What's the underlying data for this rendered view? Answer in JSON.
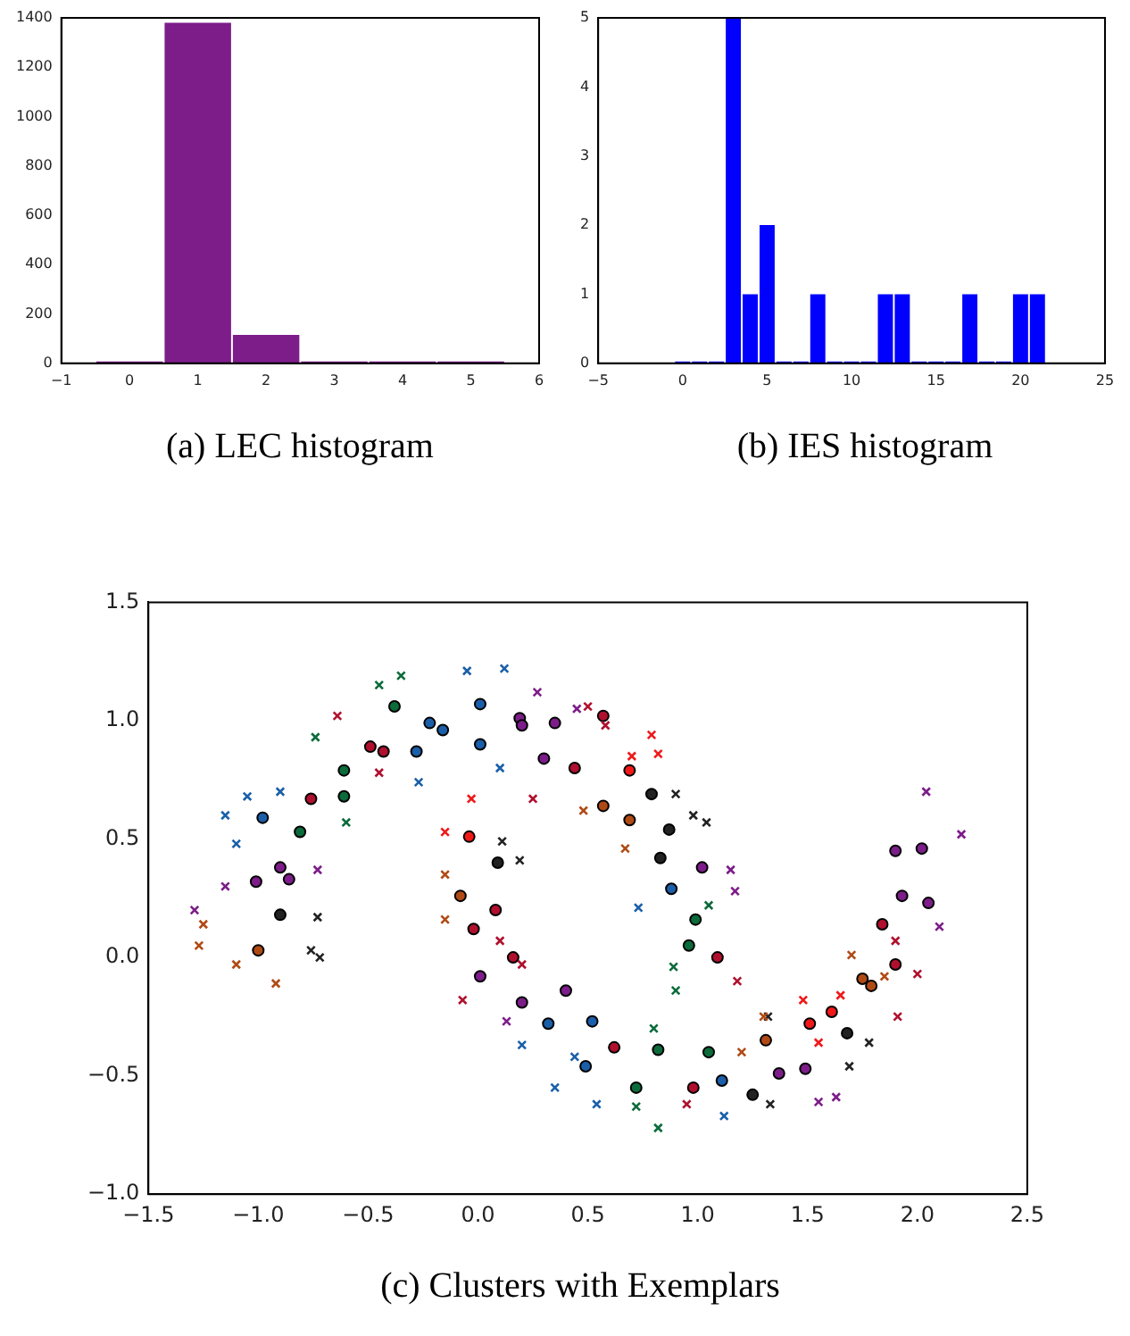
{
  "chart_data": [
    {
      "type": "histogram",
      "title": "(a) LEC histogram",
      "bins": [
        -0.5,
        0.5,
        1.5,
        2.5,
        3.5,
        4.5,
        5.5
      ],
      "values": [
        0,
        1380,
        115,
        0,
        0,
        0
      ],
      "color": "#7d1d8a",
      "xlim": [
        -1,
        6
      ],
      "xticks": [
        {
          "value": -1,
          "label": "−1"
        },
        0,
        1,
        2,
        3,
        4,
        5,
        6
      ],
      "ylim": [
        0,
        1400
      ],
      "yticks": [
        0,
        200,
        400,
        600,
        800,
        1000,
        1200,
        1400
      ],
      "grid": false,
      "legend": false
    },
    {
      "type": "histogram",
      "title": "(b) IES histogram",
      "bins": [
        -0.5,
        0.5,
        1.5,
        2.5,
        3.5,
        4.5,
        5.5,
        6.5,
        7.5,
        8.5,
        9.5,
        10.5,
        11.5,
        12.5,
        13.5,
        14.5,
        15.5,
        16.5,
        17.5,
        18.5,
        19.5,
        20.5,
        21.5
      ],
      "values": [
        0,
        0,
        0,
        5,
        1,
        2,
        0,
        0,
        1,
        0,
        0,
        0,
        1,
        1,
        0,
        0,
        0,
        1,
        0,
        0,
        1,
        1
      ],
      "color": "#0000ff",
      "xlim": [
        -5,
        25
      ],
      "xticks": [
        {
          "value": -5,
          "label": "−5"
        },
        0,
        5,
        10,
        15,
        20,
        25
      ],
      "ylim": [
        0,
        5
      ],
      "yticks": [
        0,
        1,
        2,
        3,
        4,
        5
      ],
      "grid": false,
      "legend": false
    },
    {
      "type": "scatter",
      "title": "(c) Clusters with Exemplars",
      "marker": "cross",
      "grid": false,
      "legend": false,
      "xlim": [
        -1.5,
        2.5
      ],
      "xticks": [
        {
          "value": -1.5,
          "label": "−1.5"
        },
        {
          "value": -1,
          "label": "−1.0"
        },
        {
          "value": -0.5,
          "label": "−0.5"
        },
        {
          "value": 0,
          "label": "0.0"
        },
        {
          "value": 0.5,
          "label": "0.5"
        },
        {
          "value": 1,
          "label": "1.0"
        },
        {
          "value": 1.5,
          "label": "1.5"
        },
        {
          "value": 2,
          "label": "2.0"
        },
        {
          "value": 2.5,
          "label": "2.5"
        }
      ],
      "ylim": [
        -1,
        1.5
      ],
      "yticks": [
        {
          "value": -1,
          "label": "−1.0"
        },
        {
          "value": -0.5,
          "label": "−0.5"
        },
        {
          "value": 0,
          "label": "0.0"
        },
        {
          "value": 0.5,
          "label": "0.5"
        },
        {
          "value": 1,
          "label": "1.0"
        },
        {
          "value": 1.5,
          "label": "1.5"
        }
      ],
      "series": [
        {
          "color": "#1a5fa8",
          "x": [
            -1.15,
            -1.05,
            -0.9,
            -1.1,
            -0.27,
            -0.05,
            0.12,
            0.1,
            0.2,
            0.35,
            0.54,
            0.73,
            1.12,
            0.44
          ],
          "values": [
            0.6,
            0.68,
            0.7,
            0.48,
            0.74,
            1.21,
            1.22,
            0.8,
            -0.37,
            -0.55,
            -0.62,
            0.21,
            -0.67,
            -0.42
          ]
        },
        {
          "color": "#0b6b3a",
          "x": [
            -0.74,
            -0.45,
            -0.35,
            -0.6,
            0.89,
            0.82,
            0.72,
            0.8,
            1.05,
            0.9
          ],
          "values": [
            0.93,
            1.15,
            1.19,
            0.57,
            -0.04,
            -0.72,
            -0.63,
            -0.3,
            0.22,
            -0.14
          ]
        },
        {
          "color": "#b0102e",
          "x": [
            -0.64,
            -0.45,
            0.5,
            0.58,
            0.25,
            0.1,
            -0.07,
            0.2,
            1.18,
            1.9,
            2.0,
            1.91,
            0.95
          ],
          "values": [
            1.02,
            0.78,
            1.06,
            0.98,
            0.67,
            0.07,
            -0.18,
            -0.03,
            -0.1,
            0.07,
            -0.07,
            -0.25,
            -0.62
          ]
        },
        {
          "color": "#7d1d8a",
          "x": [
            -1.29,
            -1.15,
            -0.73,
            0.27,
            0.45,
            1.15,
            1.17,
            0.13,
            1.55,
            2.04,
            2.2,
            2.1,
            1.63
          ],
          "values": [
            0.2,
            0.3,
            0.37,
            1.12,
            1.05,
            0.37,
            0.28,
            -0.27,
            -0.61,
            0.7,
            0.52,
            0.13,
            -0.59
          ]
        },
        {
          "color": "#f01818",
          "x": [
            -0.03,
            -0.15,
            0.79,
            0.7,
            0.82,
            1.48,
            1.55,
            1.65
          ],
          "values": [
            0.67,
            0.53,
            0.94,
            0.85,
            0.86,
            -0.18,
            -0.36,
            -0.16
          ]
        },
        {
          "color": "#b04a14",
          "x": [
            -1.25,
            -1.27,
            -1.1,
            -0.92,
            0.48,
            0.67,
            -0.15,
            -0.15,
            1.3,
            1.2,
            1.7,
            1.85
          ],
          "values": [
            0.14,
            0.05,
            -0.03,
            -0.11,
            0.62,
            0.46,
            0.35,
            0.16,
            -0.25,
            -0.4,
            0.01,
            -0.08
          ]
        },
        {
          "color": "#222222",
          "x": [
            -0.73,
            -0.76,
            -0.72,
            0.9,
            0.98,
            1.04,
            0.19,
            0.11,
            1.69,
            1.78,
            1.33,
            1.32
          ],
          "values": [
            0.17,
            0.03,
            0.0,
            0.69,
            0.6,
            0.57,
            0.41,
            0.49,
            -0.46,
            -0.36,
            -0.62,
            -0.25
          ]
        },
        {
          "marker": "circle",
          "x": [
            -0.98,
            -0.81,
            -0.76,
            -0.61,
            -0.61,
            -0.49,
            -0.43,
            -0.38,
            -0.28,
            -0.22,
            -0.16,
            0.01,
            0.01,
            0.19,
            0.2,
            0.35,
            0.3,
            0.44,
            0.57,
            0.69,
            0.57,
            0.69,
            0.79,
            0.87,
            0.83,
            1.02,
            0.88,
            0.99,
            0.96,
            1.09,
            -0.04,
            0.09,
            -0.08,
            0.08,
            -0.02,
            0.16,
            0.01,
            0.2,
            0.4,
            0.32,
            0.52,
            0.49,
            0.62,
            0.72,
            0.82,
            0.98,
            1.05,
            1.11,
            1.25,
            1.31,
            1.37,
            1.49,
            1.51,
            1.61,
            1.68,
            1.75,
            1.79,
            1.84,
            1.9,
            1.93,
            2.05,
            1.9,
            2.02,
            -1.01,
            -0.9,
            -0.86,
            -0.9,
            -1.0
          ],
          "values": [
            0.59,
            0.53,
            0.67,
            0.79,
            0.68,
            0.89,
            0.87,
            1.06,
            0.87,
            0.99,
            0.96,
            1.07,
            0.9,
            1.01,
            0.98,
            0.99,
            0.84,
            0.8,
            1.02,
            0.79,
            0.64,
            0.58,
            0.69,
            0.54,
            0.42,
            0.38,
            0.29,
            0.16,
            0.05,
            0.0,
            0.51,
            0.4,
            0.26,
            0.2,
            0.12,
            0.0,
            -0.08,
            -0.19,
            -0.14,
            -0.28,
            -0.27,
            -0.46,
            -0.38,
            -0.55,
            -0.39,
            -0.55,
            -0.4,
            -0.52,
            -0.58,
            -0.35,
            -0.49,
            -0.47,
            -0.28,
            -0.23,
            -0.32,
            -0.09,
            -0.12,
            0.14,
            -0.03,
            0.26,
            0.23,
            0.45,
            0.46,
            0.32,
            0.38,
            0.33,
            0.18,
            0.03
          ],
          "colors": [
            "#1a5fa8",
            "#0b6b3a",
            "#b0102e",
            "#0b6b3a",
            "#0b6b3a",
            "#b0102e",
            "#b0102e",
            "#0b6b3a",
            "#1a5fa8",
            "#1a5fa8",
            "#1a5fa8",
            "#1a5fa8",
            "#1a5fa8",
            "#7d1d8a",
            "#7d1d8a",
            "#7d1d8a",
            "#7d1d8a",
            "#b0102e",
            "#b0102e",
            "#f01818",
            "#b04a14",
            "#b04a14",
            "#222222",
            "#222222",
            "#222222",
            "#7d1d8a",
            "#1a5fa8",
            "#0b6b3a",
            "#0b6b3a",
            "#b0102e",
            "#f01818",
            "#222222",
            "#b04a14",
            "#b0102e",
            "#b0102e",
            "#b0102e",
            "#7d1d8a",
            "#7d1d8a",
            "#7d1d8a",
            "#1a5fa8",
            "#1a5fa8",
            "#1a5fa8",
            "#b0102e",
            "#0b6b3a",
            "#0b6b3a",
            "#b0102e",
            "#0b6b3a",
            "#1a5fa8",
            "#222222",
            "#b04a14",
            "#7d1d8a",
            "#7d1d8a",
            "#f01818",
            "#f01818",
            "#222222",
            "#b04a14",
            "#b04a14",
            "#b0102e",
            "#b0102e",
            "#7d1d8a",
            "#7d1d8a",
            "#7d1d8a",
            "#7d1d8a",
            "#7d1d8a",
            "#7d1d8a",
            "#7d1d8a",
            "#222222",
            "#b04a14"
          ]
        }
      ]
    }
  ]
}
